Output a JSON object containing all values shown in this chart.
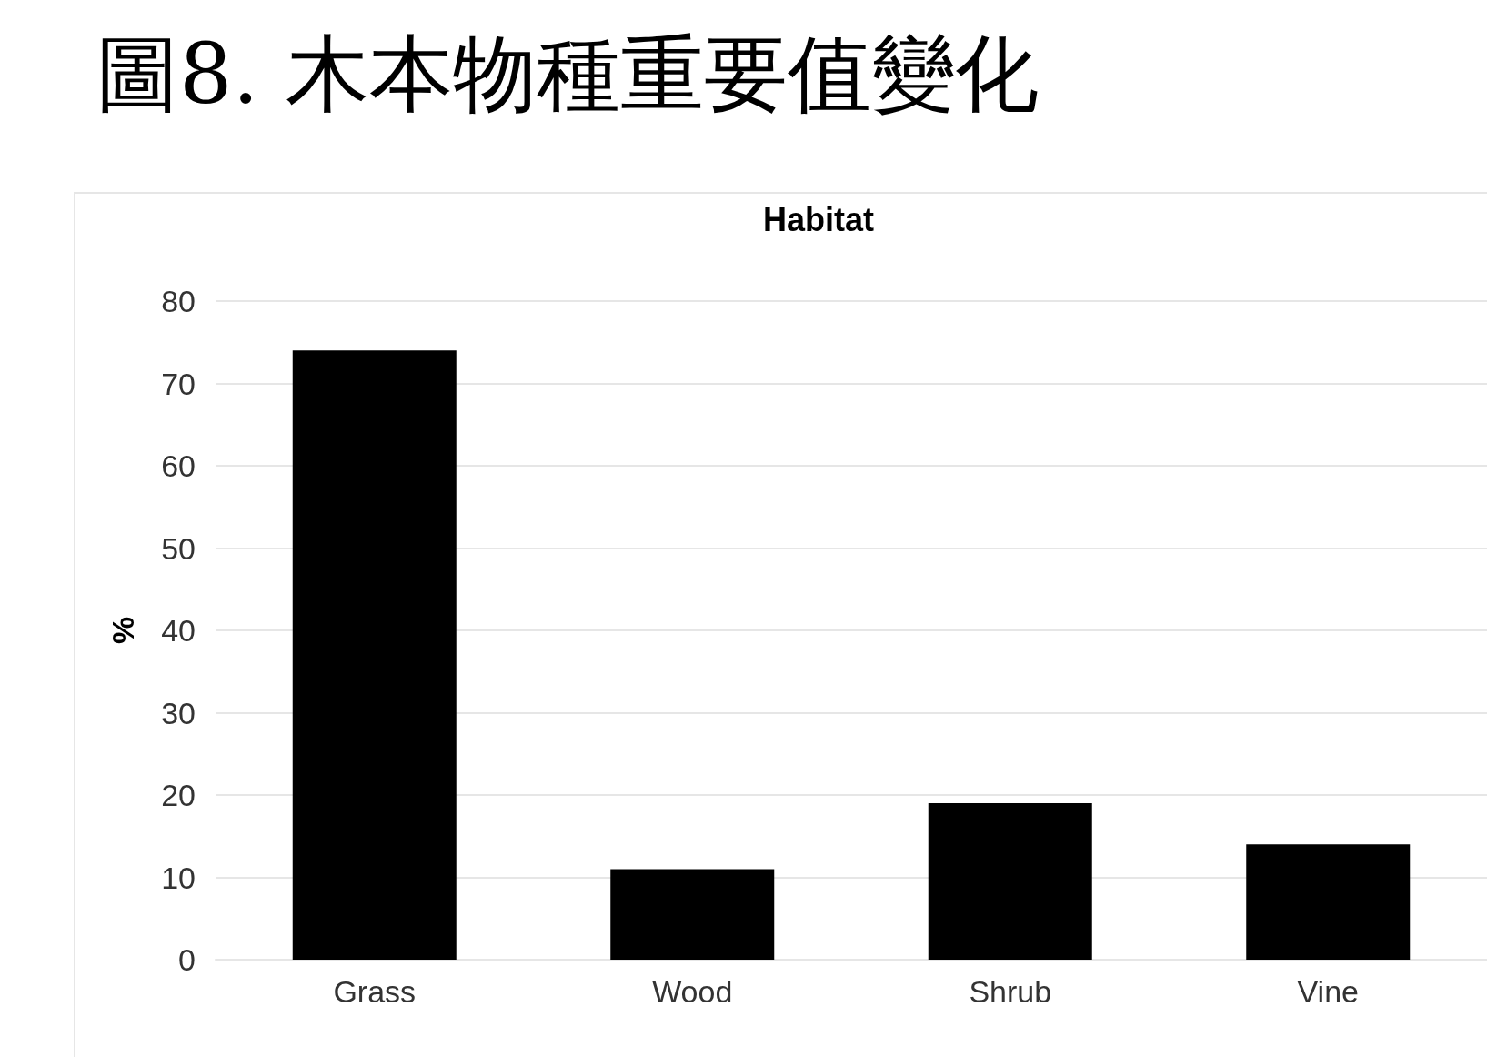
{
  "chart_data": {
    "type": "bar",
    "title": "圖8. 木本物種重要值變化",
    "subtitle": "Habitat",
    "ylabel": "%",
    "categories": [
      "Grass",
      "Wood",
      "Shrub",
      "Vine"
    ],
    "values": [
      74,
      11,
      19,
      14
    ],
    "color": "#000000",
    "ylim": [
      0,
      80
    ],
    "yticks": [
      0,
      10,
      20,
      30,
      40,
      50,
      60,
      70,
      80
    ],
    "grid": "y"
  }
}
